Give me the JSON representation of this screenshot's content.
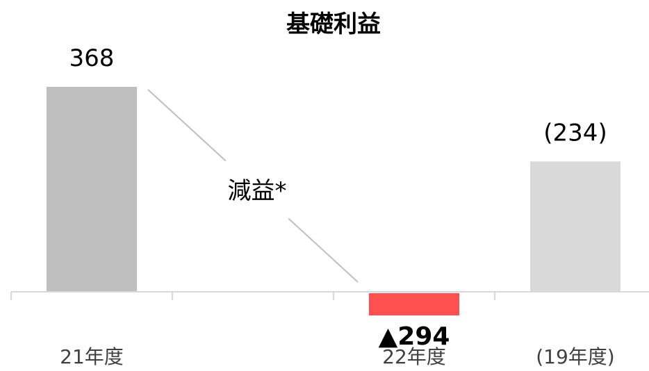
{
  "chart_data": {
    "type": "bar",
    "title": "基礎利益",
    "xlabel": "",
    "ylabel": "",
    "categories": [
      "21年度",
      "",
      "22年度",
      "(19年度)"
    ],
    "values": [
      368,
      null,
      -294,
      234
    ],
    "value_labels": [
      "368",
      "",
      "▲294",
      "(234)"
    ],
    "colors": [
      "#bfbfbf",
      "#ffffff",
      "#ff5050",
      "#d9d9d9"
    ],
    "annotation": "減益*",
    "ylim": [
      -330,
      410
    ],
    "grid": false,
    "legend": "none"
  }
}
